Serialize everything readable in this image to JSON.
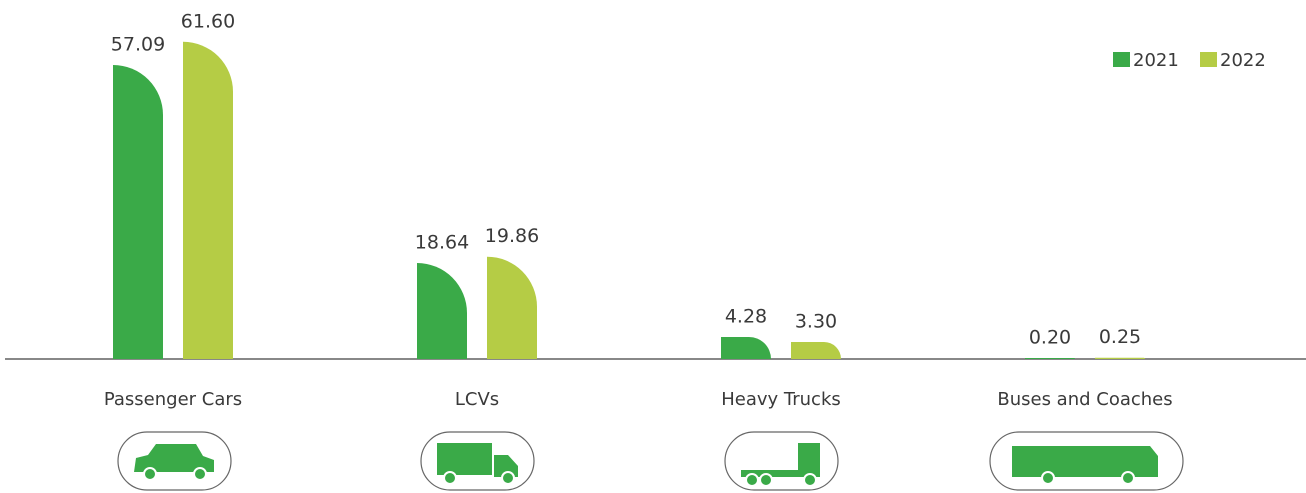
{
  "chart_data": {
    "type": "bar",
    "categories": [
      "Passenger Cars",
      "LCVs",
      "Heavy Trucks",
      "Buses and Coaches"
    ],
    "series": [
      {
        "name": "2021",
        "color": "#3aaa48",
        "values": [
          57.09,
          18.64,
          4.28,
          0.2
        ],
        "value_labels": [
          "57.09",
          "18.64",
          "4.28",
          "0.20"
        ]
      },
      {
        "name": "2022",
        "color": "#b5cc45",
        "values": [
          61.6,
          19.86,
          3.3,
          0.25
        ],
        "value_labels": [
          "61.60",
          "19.86",
          "3.30",
          "0.25"
        ]
      }
    ],
    "legend": "top-right"
  }
}
